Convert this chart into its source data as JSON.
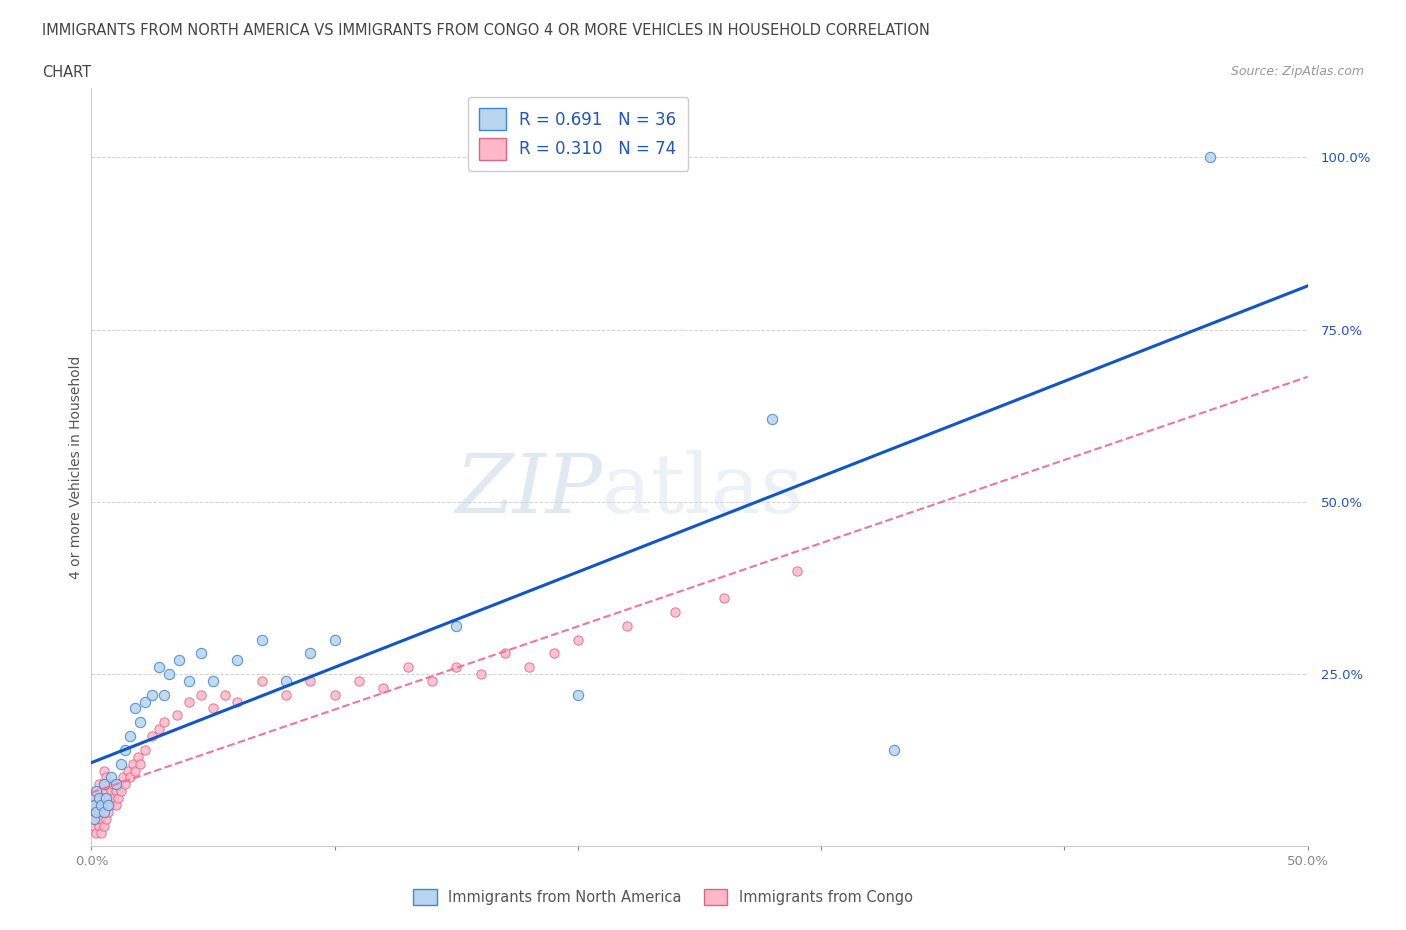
{
  "title_line1": "IMMIGRANTS FROM NORTH AMERICA VS IMMIGRANTS FROM CONGO 4 OR MORE VEHICLES IN HOUSEHOLD CORRELATION",
  "title_line2": "CHART",
  "source": "Source: ZipAtlas.com",
  "ylabel": "4 or more Vehicles in Household",
  "xlim": [
    0.0,
    0.5
  ],
  "ylim": [
    0.0,
    1.1
  ],
  "xticks": [
    0.0,
    0.1,
    0.2,
    0.3,
    0.4,
    0.5
  ],
  "yticks": [
    0.0,
    0.25,
    0.5,
    0.75,
    1.0
  ],
  "xticklabels": [
    "0.0%",
    "",
    "",
    "",
    "",
    "50.0%"
  ],
  "yticklabels": [
    "",
    "25.0%",
    "50.0%",
    "75.0%",
    "100.0%"
  ],
  "background_color": "#ffffff",
  "north_america_x": [
    0.001,
    0.001,
    0.002,
    0.002,
    0.003,
    0.004,
    0.005,
    0.005,
    0.006,
    0.007,
    0.008,
    0.01,
    0.012,
    0.014,
    0.016,
    0.018,
    0.02,
    0.022,
    0.025,
    0.028,
    0.03,
    0.032,
    0.036,
    0.04,
    0.045,
    0.05,
    0.06,
    0.07,
    0.08,
    0.09,
    0.1,
    0.15,
    0.2,
    0.28,
    0.33,
    0.46
  ],
  "north_america_y": [
    0.04,
    0.06,
    0.05,
    0.08,
    0.07,
    0.06,
    0.05,
    0.09,
    0.07,
    0.06,
    0.1,
    0.09,
    0.12,
    0.14,
    0.16,
    0.2,
    0.18,
    0.21,
    0.22,
    0.26,
    0.22,
    0.25,
    0.27,
    0.24,
    0.28,
    0.24,
    0.27,
    0.3,
    0.24,
    0.28,
    0.3,
    0.32,
    0.22,
    0.62,
    0.14,
    1.0
  ],
  "congo_x": [
    0.001,
    0.001,
    0.001,
    0.001,
    0.001,
    0.002,
    0.002,
    0.002,
    0.002,
    0.003,
    0.003,
    0.003,
    0.003,
    0.004,
    0.004,
    0.004,
    0.004,
    0.005,
    0.005,
    0.005,
    0.005,
    0.005,
    0.006,
    0.006,
    0.006,
    0.006,
    0.007,
    0.007,
    0.007,
    0.008,
    0.008,
    0.009,
    0.009,
    0.01,
    0.01,
    0.011,
    0.011,
    0.012,
    0.013,
    0.014,
    0.015,
    0.016,
    0.017,
    0.018,
    0.019,
    0.02,
    0.022,
    0.025,
    0.028,
    0.03,
    0.035,
    0.04,
    0.045,
    0.05,
    0.055,
    0.06,
    0.07,
    0.08,
    0.09,
    0.1,
    0.11,
    0.12,
    0.13,
    0.14,
    0.15,
    0.16,
    0.17,
    0.18,
    0.19,
    0.2,
    0.22,
    0.24,
    0.26,
    0.29
  ],
  "congo_y": [
    0.03,
    0.05,
    0.07,
    0.04,
    0.06,
    0.02,
    0.04,
    0.06,
    0.08,
    0.03,
    0.05,
    0.07,
    0.09,
    0.02,
    0.04,
    0.06,
    0.08,
    0.03,
    0.05,
    0.07,
    0.09,
    0.11,
    0.04,
    0.06,
    0.08,
    0.1,
    0.05,
    0.07,
    0.09,
    0.06,
    0.08,
    0.07,
    0.09,
    0.06,
    0.08,
    0.07,
    0.09,
    0.08,
    0.1,
    0.09,
    0.11,
    0.1,
    0.12,
    0.11,
    0.13,
    0.12,
    0.14,
    0.16,
    0.17,
    0.18,
    0.19,
    0.21,
    0.22,
    0.2,
    0.22,
    0.21,
    0.24,
    0.22,
    0.24,
    0.22,
    0.24,
    0.23,
    0.26,
    0.24,
    0.26,
    0.25,
    0.28,
    0.26,
    0.28,
    0.3,
    0.32,
    0.34,
    0.36,
    0.4
  ],
  "na_facecolor": "#b8d4ee",
  "na_edgecolor": "#4488cc",
  "congo_facecolor": "#ffb8c8",
  "congo_edgecolor": "#dd6688",
  "line_na_color": "#1155cc",
  "line_congo_color": "#ee7799",
  "tick_label_color": "#2255bb",
  "r_na": 0.691,
  "n_na": 36,
  "r_congo": 0.31,
  "n_congo": 74,
  "legend_label_na": "Immigrants from North America",
  "legend_label_congo": "Immigrants from Congo",
  "grid_color": "#aaaaaa",
  "grid_alpha": 0.5
}
